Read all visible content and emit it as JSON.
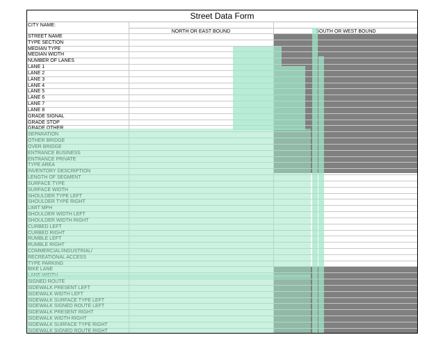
{
  "form": {
    "title": "Street Data Form",
    "city_label": "CITY NAME:",
    "north_east_header": "NORTH OR EAST BOUND",
    "south_west_header": "SOUTH OR WEST BOUND",
    "rows": [
      "STREET NAME",
      "TYPE SECTION",
      "MEDIAN TYPE",
      "MEDIAN WIDTH",
      "NUMBER OF LANES",
      "LANE 1",
      "LANE 2",
      "LANE 3",
      "LANE 4",
      "LANE 5",
      "LANE 6",
      "LANE 7",
      "LANE 8",
      "GRADE SIGNAL",
      "GRADE STOP",
      "GRADE OTHER",
      "SEPARATION",
      "OTHER BRIDGE",
      "OVER BRIDGE",
      "ENTRANCE BUSINESS",
      "ENTRANCE PRIVATE",
      "TYPE AREA",
      "INVENTORY DESCRIPTION",
      "LENGTH OF SEGMENT",
      "SURFACE TYPE",
      "SURFACE WIDTH",
      "SHOULDER TYPE LEFT",
      "SHOULDER TYPE RIGHT",
      "LIMIT MPH",
      "SHOULDER WIDTH LEFT",
      "SHOULDER WIDTH RIGHT",
      "CURBED LEFT",
      "CURBED RIGHT",
      "RUMBLE LEFT",
      "RUMBLE RIGHT",
      "COMMERCIAL/INDUSTRIAL/",
      "RECREATIONAL ACCESS",
      "TYPE PARKING",
      "BIKE LANE",
      "LANE WIDTH",
      "SIGNED ROUTE",
      "SIDEWALK PRESENT LEFT",
      "SIDEWALK WIDTH LEFT",
      "SIDEWALK SURFACE TYPE LEFT",
      "SIDEWALK SIGNED ROUTE LEFT",
      "SIDEWALK PRESENT RIGHT",
      "SIDEWALK WIDTH RIGHT",
      "SIDEWALK SURFACE TYPE RIGHT",
      "SIDEWALK SIGNED ROUTE RIGHT"
    ]
  }
}
